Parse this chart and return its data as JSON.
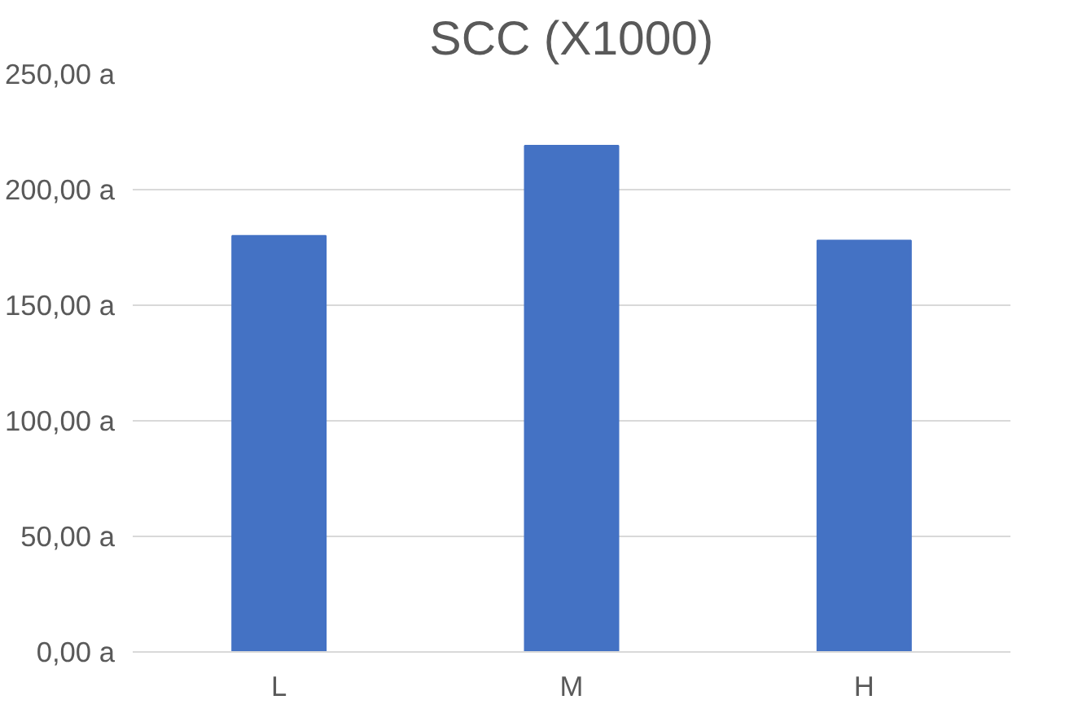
{
  "chart_data": {
    "type": "bar",
    "title": "SCC (X1000)",
    "categories": [
      "L",
      "M",
      "H"
    ],
    "values": [
      180,
      219,
      178
    ],
    "color": "#4472c4",
    "ylim": [
      0,
      250
    ],
    "yticks": [
      {
        "value": 0,
        "label": "0,00 a"
      },
      {
        "value": 50,
        "label": "50,00 a"
      },
      {
        "value": 100,
        "label": "100,00 a"
      },
      {
        "value": 150,
        "label": "150,00 a"
      },
      {
        "value": 200,
        "label": "200,00 a"
      },
      {
        "value": 250,
        "label": "250,00 a"
      }
    ],
    "grid": "y"
  }
}
